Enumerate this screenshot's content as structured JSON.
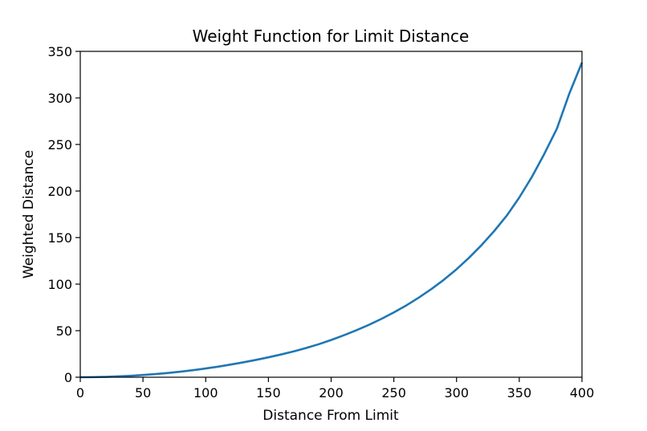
{
  "chart_data": {
    "type": "line",
    "title": "Weight Function for Limit Distance",
    "xlabel": "Distance From Limit",
    "ylabel": "Weighted Distance",
    "xlim": [
      0,
      400
    ],
    "ylim": [
      0,
      350
    ],
    "xticks": [
      "0",
      "50",
      "100",
      "150",
      "200",
      "250",
      "300",
      "350",
      "400"
    ],
    "yticks": [
      "0",
      "50",
      "100",
      "150",
      "200",
      "250",
      "300",
      "350"
    ],
    "grid": false,
    "legend": "none",
    "series": [
      {
        "color": "#1f77b4",
        "x": [
          0,
          10,
          20,
          30,
          40,
          50,
          60,
          70,
          80,
          90,
          100,
          110,
          120,
          130,
          140,
          150,
          160,
          170,
          180,
          190,
          200,
          210,
          220,
          230,
          240,
          250,
          260,
          270,
          280,
          290,
          300,
          310,
          320,
          330,
          340,
          350,
          360,
          370,
          380,
          390,
          400
        ],
        "y": [
          0,
          0.1,
          0.4,
          0.9,
          1.5,
          2.4,
          3.4,
          4.6,
          6.0,
          7.6,
          9.4,
          11.4,
          13.6,
          16.0,
          18.6,
          21.4,
          24.4,
          27.7,
          31.4,
          35.4,
          40.0,
          45.0,
          50.4,
          56.2,
          62.6,
          69.6,
          77.2,
          85.6,
          94.8,
          104.8,
          116.0,
          128.4,
          142.0,
          157.0,
          173.5,
          193.0,
          215.0,
          240.0,
          267.0,
          305.0,
          338.0
        ]
      }
    ]
  }
}
